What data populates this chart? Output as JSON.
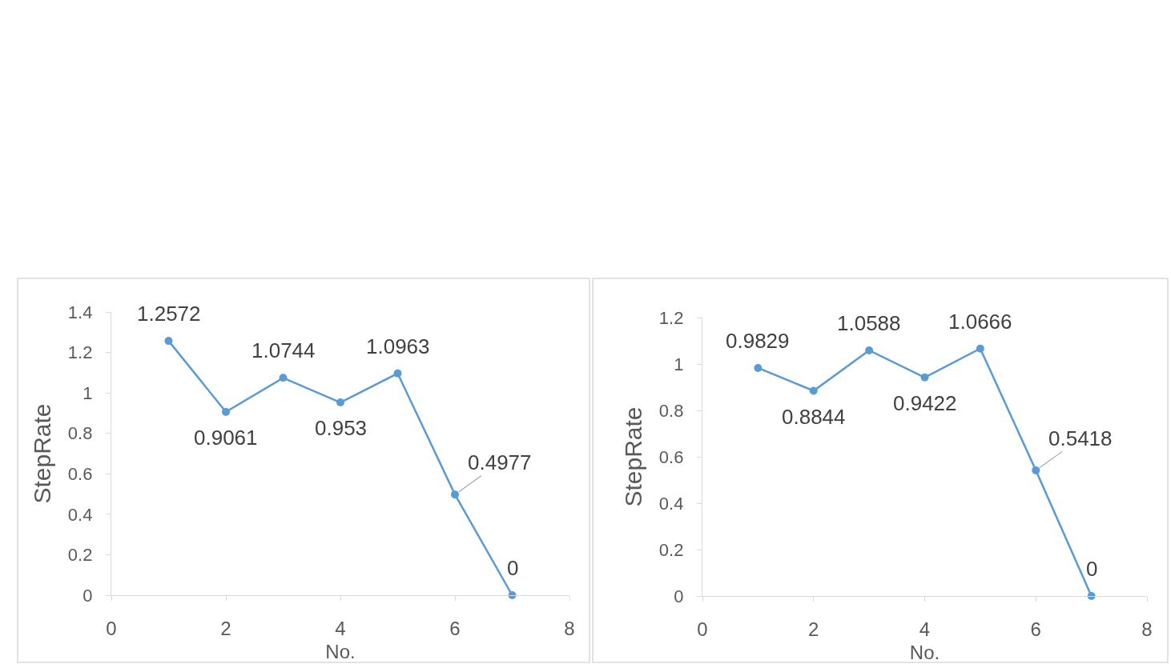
{
  "chart_data": [
    {
      "type": "line",
      "xlabel": "No.",
      "ylabel": "StepRate",
      "x": [
        1,
        2,
        3,
        4,
        5,
        6,
        7
      ],
      "values": [
        1.2572,
        0.9061,
        1.0744,
        0.953,
        1.0963,
        0.4977,
        0
      ],
      "color": "#5b9bd5",
      "marker": "circle",
      "data_labels": true,
      "xlim": [
        0,
        8
      ],
      "xticks": [
        0,
        2,
        4,
        6,
        8
      ],
      "ylim": [
        0,
        1.4
      ],
      "yticks": [
        0,
        0.2,
        0.4,
        0.6,
        0.8,
        1,
        1.2,
        1.4
      ]
    },
    {
      "type": "line",
      "xlabel": "No.",
      "ylabel": "StepRate",
      "x": [
        1,
        2,
        3,
        4,
        5,
        6,
        7
      ],
      "values": [
        0.9829,
        0.8844,
        1.0588,
        0.9422,
        1.0666,
        0.5418,
        0
      ],
      "color": "#5b9bd5",
      "marker": "circle",
      "data_labels": true,
      "xlim": [
        0,
        8
      ],
      "xticks": [
        0,
        2,
        4,
        6,
        8
      ],
      "ylim": [
        0,
        1.2
      ],
      "yticks": [
        0,
        0.2,
        0.4,
        0.6,
        0.8,
        1,
        1.2
      ]
    }
  ]
}
